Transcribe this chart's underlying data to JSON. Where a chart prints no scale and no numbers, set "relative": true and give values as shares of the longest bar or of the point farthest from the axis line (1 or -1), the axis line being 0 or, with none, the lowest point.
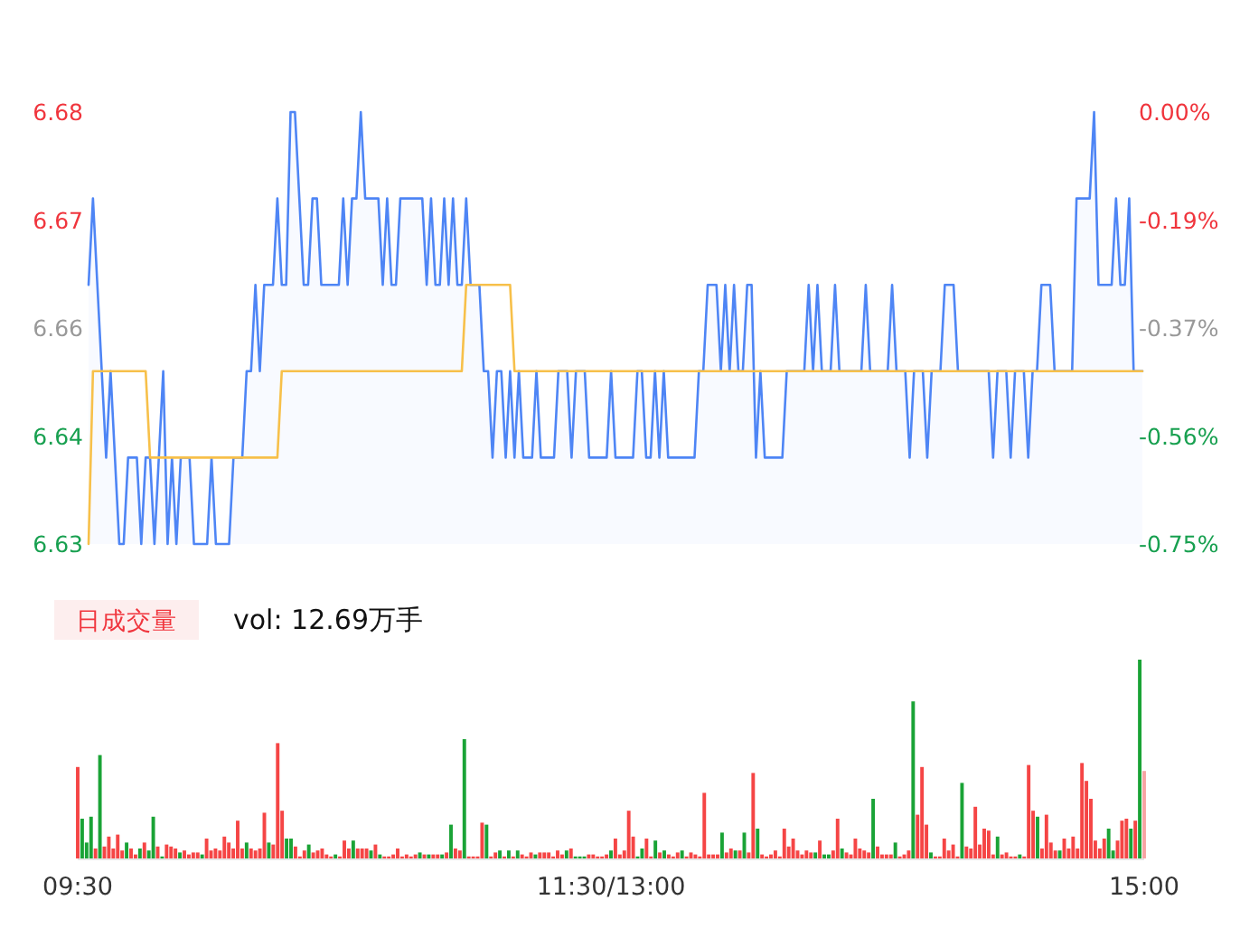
{
  "chart_data": [
    {
      "type": "line",
      "ylim": [
        6.63,
        6.68
      ],
      "categories": [
        null,
        null,
        null,
        null,
        null,
        null,
        null,
        null,
        null,
        null,
        null,
        null,
        null,
        null,
        null,
        null,
        null,
        null,
        null,
        null,
        null,
        null,
        null,
        null,
        null,
        null,
        null,
        null,
        null,
        null,
        null,
        null,
        null,
        null,
        null,
        null,
        null,
        null,
        null,
        null,
        null,
        null,
        null,
        null,
        null,
        null,
        null,
        null,
        null,
        null,
        null,
        null,
        null,
        null,
        null,
        null,
        null,
        null,
        null,
        null,
        null,
        null,
        null,
        null,
        null,
        null,
        null,
        null,
        null,
        null,
        null,
        null,
        null,
        null,
        null,
        null,
        null,
        null,
        null,
        null,
        null,
        null,
        null,
        null,
        null,
        null,
        null,
        null,
        null,
        null,
        null,
        null,
        null,
        null,
        null,
        null,
        null,
        null,
        null,
        null,
        null,
        null,
        null,
        null,
        null,
        null,
        null,
        null,
        null,
        null,
        null,
        null,
        null,
        null,
        null,
        null,
        null,
        null,
        null,
        null,
        null,
        null,
        null,
        null,
        null,
        null,
        null,
        null,
        null,
        null,
        null,
        null,
        null,
        null,
        null,
        null,
        null,
        null,
        null,
        null,
        null,
        null,
        null,
        null,
        null,
        null,
        null,
        null,
        null,
        null,
        null,
        null,
        null,
        null,
        null,
        null,
        null,
        null,
        null,
        null,
        null,
        null,
        null,
        null,
        null,
        null,
        null,
        null,
        null,
        null,
        null,
        null,
        null,
        null,
        null,
        null,
        null,
        null,
        null,
        null,
        null,
        null,
        null,
        null,
        null,
        null,
        null,
        null,
        null,
        null,
        null,
        null,
        null,
        null,
        null,
        null,
        null,
        null,
        null,
        null,
        null,
        null,
        null,
        null,
        null,
        null,
        null,
        null,
        null,
        null,
        null,
        null,
        null,
        null,
        null,
        null,
        null,
        null,
        null,
        null,
        null,
        null,
        null,
        null,
        null,
        null,
        null,
        null,
        null,
        null,
        null,
        null,
        null,
        null,
        null,
        null,
        null,
        null,
        null,
        null,
        null
      ],
      "yticks": [
        6.63,
        {
          "value": 6.6425,
          "label": "6.64"
        },
        {
          "value": 6.655,
          "label": "6.66"
        },
        {
          "value": 6.6675,
          "label": "6.67"
        },
        6.68
      ],
      "y2lim": [
        -0.75,
        0
      ],
      "y2ticks": [
        {
          "value": -0.75,
          "label": "-0.75%"
        },
        {
          "value": -0.5625,
          "label": "-0.56%"
        },
        {
          "value": -0.375,
          "label": "-0.37%"
        },
        {
          "value": -0.1875,
          "label": "-0.19%"
        },
        {
          "value": 0,
          "label": "0.00%"
        }
      ],
      "tick_labels": "y",
      "series": [
        {
          "type": "area",
          "color": "#4e85f5",
          "values": [
            6.66,
            6.67,
            6.66,
            6.65,
            6.64,
            6.65,
            6.64,
            6.63,
            6.63,
            6.64,
            6.64,
            6.64,
            6.63,
            6.64,
            6.64,
            6.63,
            6.64,
            6.65,
            6.63,
            6.64,
            6.63,
            6.64,
            6.64,
            6.64,
            6.63,
            6.63,
            6.63,
            6.63,
            6.64,
            6.63,
            6.63,
            6.63,
            6.63,
            6.64,
            6.64,
            6.64,
            6.65,
            6.65,
            6.66,
            6.65,
            6.66,
            6.66,
            6.66,
            6.67,
            6.66,
            6.66,
            6.68,
            6.68,
            6.67,
            6.66,
            6.66,
            6.67,
            6.67,
            6.66,
            6.66,
            6.66,
            6.66,
            6.66,
            6.67,
            6.66,
            6.67,
            6.67,
            6.68,
            6.67,
            6.67,
            6.67,
            6.67,
            6.66,
            6.67,
            6.66,
            6.66,
            6.67,
            6.67,
            6.67,
            6.67,
            6.67,
            6.67,
            6.66,
            6.67,
            6.66,
            6.66,
            6.67,
            6.66,
            6.67,
            6.66,
            6.66,
            6.67,
            6.66,
            6.66,
            6.66,
            6.65,
            6.65,
            6.64,
            6.65,
            6.65,
            6.64,
            6.65,
            6.64,
            6.65,
            6.64,
            6.64,
            6.64,
            6.65,
            6.64,
            6.64,
            6.64,
            6.64,
            6.65,
            6.65,
            6.65,
            6.64,
            6.65,
            6.65,
            6.65,
            6.64,
            6.64,
            6.64,
            6.64,
            6.64,
            6.65,
            6.64,
            6.64,
            6.64,
            6.64,
            6.64,
            6.65,
            6.65,
            6.64,
            6.64,
            6.65,
            6.64,
            6.65,
            6.64,
            6.64,
            6.64,
            6.64,
            6.64,
            6.64,
            6.64,
            6.65,
            6.65,
            6.66,
            6.66,
            6.66,
            6.65,
            6.66,
            6.65,
            6.66,
            6.65,
            6.65,
            6.66,
            6.66,
            6.64,
            6.65,
            6.64,
            6.64,
            6.64,
            6.64,
            6.64,
            6.65,
            6.65,
            6.65,
            6.65,
            6.65,
            6.66,
            6.65,
            6.66,
            6.65,
            6.65,
            6.65,
            6.66,
            6.65,
            6.65,
            6.65,
            6.65,
            6.65,
            6.65,
            6.66,
            6.65,
            6.65,
            6.65,
            6.65,
            6.65,
            6.66,
            6.65,
            6.65,
            6.65,
            6.64,
            6.65,
            6.65,
            6.65,
            6.64,
            6.65,
            6.65,
            6.65,
            6.66,
            6.66,
            6.66,
            6.65,
            6.65,
            6.65,
            6.65,
            6.65,
            6.65,
            6.65,
            6.65,
            6.64,
            6.65,
            6.65,
            6.65,
            6.64,
            6.65,
            6.65,
            6.65,
            6.64,
            6.65,
            6.65,
            6.66,
            6.66,
            6.66,
            6.65,
            6.65,
            6.65,
            6.65,
            6.65,
            6.67,
            6.67,
            6.67,
            6.67,
            6.68,
            6.66,
            6.66,
            6.66,
            6.66,
            6.67,
            6.66,
            6.66,
            6.67,
            6.65,
            6.65,
            6.65
          ]
        },
        {
          "color": "#f7c04a",
          "values": [
            6.63,
            6.65,
            6.65,
            6.65,
            6.65,
            6.65,
            6.65,
            6.65,
            6.65,
            6.65,
            6.65,
            6.65,
            6.65,
            6.65,
            6.64,
            6.64,
            6.64,
            6.64,
            6.64,
            6.64,
            6.64,
            6.64,
            6.64,
            6.64,
            6.64,
            6.64,
            6.64,
            6.64,
            6.64,
            6.64,
            6.64,
            6.64,
            6.64,
            6.64,
            6.64,
            6.64,
            6.64,
            6.64,
            6.64,
            6.64,
            6.64,
            6.64,
            6.64,
            6.64,
            6.65,
            6.65,
            6.65,
            6.65,
            6.65,
            6.65,
            6.65,
            6.65,
            6.65,
            6.65,
            6.65,
            6.65,
            6.65,
            6.65,
            6.65,
            6.65,
            6.65,
            6.65,
            6.65,
            6.65,
            6.65,
            6.65,
            6.65,
            6.65,
            6.65,
            6.65,
            6.65,
            6.65,
            6.65,
            6.65,
            6.65,
            6.65,
            6.65,
            6.65,
            6.65,
            6.65,
            6.65,
            6.65,
            6.65,
            6.65,
            6.65,
            6.65,
            6.66,
            6.66,
            6.66,
            6.66,
            6.66,
            6.66,
            6.66,
            6.66,
            6.66,
            6.66,
            6.66,
            6.65,
            6.65,
            6.65,
            6.65,
            6.65,
            6.65,
            6.65,
            6.65,
            6.65,
            6.65,
            6.65,
            6.65,
            6.65,
            6.65,
            6.65,
            6.65,
            6.65,
            6.65,
            6.65,
            6.65,
            6.65,
            6.65,
            6.65,
            6.65,
            6.65,
            6.65,
            6.65,
            6.65,
            6.65,
            6.65,
            6.65,
            6.65,
            6.65,
            6.65,
            6.65,
            6.65,
            6.65,
            6.65,
            6.65,
            6.65,
            6.65,
            6.65,
            6.65,
            6.65,
            6.65,
            6.65,
            6.65,
            6.65,
            6.65,
            6.65,
            6.65,
            6.65,
            6.65,
            6.65,
            6.65,
            6.65,
            6.65,
            6.65,
            6.65,
            6.65,
            6.65,
            6.65,
            6.65,
            6.65,
            6.65,
            6.65,
            6.65,
            6.65,
            6.65,
            6.65,
            6.65,
            6.65,
            6.65,
            6.65,
            6.65,
            6.65,
            6.65,
            6.65,
            6.65,
            6.65,
            6.65,
            6.65,
            6.65,
            6.65,
            6.65,
            6.65,
            6.65,
            6.65,
            6.65,
            6.65,
            6.65,
            6.65,
            6.65,
            6.65,
            6.65,
            6.65,
            6.65,
            6.65,
            6.65,
            6.65,
            6.65,
            6.65,
            6.65,
            6.65,
            6.65,
            6.65,
            6.65,
            6.65,
            6.65,
            6.65,
            6.65,
            6.65,
            6.65,
            6.65,
            6.65,
            6.65,
            6.65,
            6.65,
            6.65,
            6.65,
            6.65,
            6.65,
            6.65,
            6.65,
            6.65,
            6.65,
            6.65,
            6.65,
            6.65,
            6.65,
            6.65,
            6.65,
            6.65,
            6.65,
            6.65,
            6.65,
            6.65,
            6.65,
            6.65,
            6.65,
            6.65,
            6.65,
            6.65,
            6.65
          ]
        }
      ]
    },
    {
      "type": "bar",
      "relative": true,
      "title": "日成交量",
      "annotations": [
        "vol: 12.69万手"
      ],
      "categories": [
        "09:30",
        null,
        null,
        null,
        null,
        null,
        null,
        null,
        null,
        null,
        null,
        null,
        null,
        null,
        null,
        null,
        null,
        null,
        null,
        null,
        null,
        null,
        null,
        null,
        null,
        null,
        null,
        null,
        null,
        null,
        null,
        null,
        null,
        null,
        null,
        null,
        null,
        null,
        null,
        null,
        null,
        null,
        null,
        null,
        null,
        null,
        null,
        null,
        null,
        null,
        null,
        null,
        null,
        null,
        null,
        null,
        null,
        null,
        null,
        null,
        null,
        null,
        null,
        null,
        null,
        null,
        null,
        null,
        null,
        null,
        null,
        null,
        null,
        null,
        null,
        null,
        null,
        null,
        null,
        null,
        null,
        null,
        null,
        null,
        null,
        null,
        null,
        null,
        null,
        null,
        null,
        null,
        null,
        null,
        null,
        null,
        null,
        null,
        null,
        null,
        null,
        null,
        null,
        null,
        null,
        null,
        null,
        null,
        null,
        null,
        null,
        null,
        null,
        null,
        null,
        null,
        null,
        null,
        null,
        null,
        "11:30/13:00",
        null,
        null,
        null,
        null,
        null,
        null,
        null,
        null,
        null,
        null,
        null,
        null,
        null,
        null,
        null,
        null,
        null,
        null,
        null,
        null,
        null,
        null,
        null,
        null,
        null,
        null,
        null,
        null,
        null,
        null,
        null,
        null,
        null,
        null,
        null,
        null,
        null,
        null,
        null,
        null,
        null,
        null,
        null,
        null,
        null,
        null,
        null,
        null,
        null,
        null,
        null,
        null,
        null,
        null,
        null,
        null,
        null,
        null,
        null,
        null,
        null,
        null,
        null,
        null,
        null,
        null,
        null,
        null,
        null,
        null,
        null,
        null,
        null,
        null,
        null,
        null,
        null,
        null,
        null,
        null,
        null,
        null,
        null,
        null,
        null,
        null,
        null,
        null,
        null,
        null,
        null,
        null,
        null,
        null,
        null,
        null,
        null,
        null,
        null,
        null,
        null,
        null,
        null,
        null,
        null,
        null,
        null,
        null,
        null,
        null,
        null,
        null,
        null,
        null,
        null,
        null,
        null,
        null,
        null,
        "15:00"
      ],
      "values": [
        0.46,
        0.2,
        0.08,
        0.21,
        0.05,
        0.52,
        0.06,
        0.11,
        0.05,
        0.12,
        0.04,
        0.08,
        0.05,
        0.02,
        0.05,
        0.08,
        0.04,
        0.21,
        0.06,
        0.01,
        0.07,
        0.06,
        0.05,
        0.03,
        0.04,
        0.02,
        0.03,
        0.03,
        0.02,
        0.1,
        0.04,
        0.05,
        0.04,
        0.11,
        0.08,
        0.05,
        0.19,
        0.05,
        0.08,
        0.05,
        0.04,
        0.05,
        0.23,
        0.08,
        0.07,
        0.58,
        0.24,
        0.1,
        0.1,
        0.06,
        0.01,
        0.04,
        0.07,
        0.03,
        0.04,
        0.05,
        0.02,
        0.01,
        0.02,
        0.01,
        0.09,
        0.05,
        0.09,
        0.05,
        0.05,
        0.05,
        0.04,
        0.07,
        0.02,
        0.01,
        0.01,
        0.02,
        0.05,
        0.01,
        0.02,
        0.01,
        0.02,
        0.03,
        0.02,
        0.02,
        0.02,
        0.02,
        0.02,
        0.03,
        0.17,
        0.05,
        0.04,
        0.6,
        0.01,
        0.01,
        0.01,
        0.18,
        0.17,
        0.01,
        0.03,
        0.04,
        0.01,
        0.04,
        0.01,
        0.04,
        0.02,
        0.01,
        0.03,
        0.02,
        0.03,
        0.03,
        0.03,
        0.01,
        0.04,
        0.02,
        0.04,
        0.05,
        0.01,
        0.01,
        0.01,
        0.02,
        0.02,
        0.01,
        0.01,
        0.02,
        0.04,
        0.1,
        0.02,
        0.04,
        0.24,
        0.11,
        0.01,
        0.05,
        0.1,
        0.01,
        0.09,
        0.03,
        0.04,
        0.02,
        0.01,
        0.03,
        0.04,
        0.01,
        0.03,
        0.02,
        0.01,
        0.33,
        0.02,
        0.02,
        0.02,
        0.13,
        0.03,
        0.05,
        0.04,
        0.04,
        0.13,
        0.03,
        0.43,
        0.15,
        0.02,
        0.01,
        0.02,
        0.04,
        0.01,
        0.15,
        0.06,
        0.1,
        0.04,
        0.02,
        0.04,
        0.03,
        0.03,
        0.09,
        0.02,
        0.02,
        0.04,
        0.2,
        0.05,
        0.03,
        0.02,
        0.1,
        0.05,
        0.04,
        0.03,
        0.3,
        0.06,
        0.02,
        0.02,
        0.02,
        0.08,
        0.01,
        0.02,
        0.04,
        0.79,
        0.22,
        0.46,
        0.17,
        0.03,
        0.01,
        0.01,
        0.1,
        0.04,
        0.07,
        0.01,
        0.38,
        0.06,
        0.05,
        0.26,
        0.07,
        0.15,
        0.14,
        0.02,
        0.11,
        0.02,
        0.03,
        0.01,
        0.01,
        0.02,
        0.01,
        0.47,
        0.24,
        0.21,
        0.05,
        0.22,
        0.08,
        0.04,
        0.04,
        0.1,
        0.05,
        0.11,
        0.05,
        0.48,
        0.39,
        0.3,
        0.09,
        0.05,
        0.1,
        0.15,
        0.04,
        0.09,
        0.19,
        0.2,
        0.15,
        0.19,
        1.0,
        0.44
      ],
      "colors": [
        "#f54545",
        "#1aa336",
        "#1aa336",
        "#1aa336",
        "#f54545",
        "#1aa336",
        "#f54545",
        "#f54545",
        "#f54545",
        "#f54545",
        "#f54545",
        "#1aa336",
        "#f54545",
        "#f54545",
        "#1aa336",
        "#f54545",
        "#1aa336",
        "#1aa336",
        "#f54545",
        "#1aa336",
        "#f54545",
        "#f54545",
        "#f54545",
        "#1aa336",
        "#f54545",
        "#f54545",
        "#f54545",
        "#f54545",
        "#1aa336",
        "#f54545",
        "#f54545",
        "#f54545",
        "#f54545",
        "#f54545",
        "#f54545",
        "#f54545",
        "#f54545",
        "#f54545",
        "#1aa336",
        "#f54545",
        "#f54545",
        "#f54545",
        "#f54545",
        "#1aa336",
        "#f54545",
        "#f54545",
        "#f54545",
        "#1aa336",
        "#1aa336",
        "#f54545",
        "#f54545",
        "#f54545",
        "#1aa336",
        "#f54545",
        "#f54545",
        "#f54545",
        "#f54545",
        "#f54545",
        "#1aa336",
        "#f54545",
        "#f54545",
        "#f54545",
        "#1aa336",
        "#f54545",
        "#f54545",
        "#f54545",
        "#1aa336",
        "#f54545",
        "#1aa336",
        "#f54545",
        "#f54545",
        "#f54545",
        "#f54545",
        "#f54545",
        "#f54545",
        "#f54545",
        "#f54545",
        "#1aa336",
        "#f54545",
        "#1aa336",
        "#f54545",
        "#f54545",
        "#1aa336",
        "#f54545",
        "#1aa336",
        "#f54545",
        "#f54545",
        "#1aa336",
        "#f54545",
        "#f54545",
        "#f54545",
        "#f54545",
        "#1aa336",
        "#f54545",
        "#f54545",
        "#1aa336",
        "#f54545",
        "#1aa336",
        "#f54545",
        "#1aa336",
        "#f54545",
        "#f54545",
        "#f54545",
        "#1aa336",
        "#f54545",
        "#f54545",
        "#f54545",
        "#f54545",
        "#f54545",
        "#f54545",
        "#1aa336",
        "#f54545",
        "#1aa336",
        "#1aa336",
        "#1aa336",
        "#f54545",
        "#f54545",
        "#f54545",
        "#f54545",
        "#f54545",
        "#1aa336",
        "#f54545",
        "#f54545",
        "#f54545",
        "#f54545",
        "#f54545",
        "#1aa336",
        "#1aa336",
        "#f54545",
        "#f54545",
        "#1aa336",
        "#f54545",
        "#1aa336",
        "#f54545",
        "#f54545",
        "#f54545",
        "#1aa336",
        "#f54545",
        "#f54545",
        "#f54545",
        "#f54545",
        "#f54545",
        "#f54545",
        "#f54545",
        "#f54545",
        "#1aa336",
        "#f54545",
        "#f54545",
        "#1aa336",
        "#f54545",
        "#1aa336",
        "#f54545",
        "#f54545",
        "#1aa336",
        "#f54545",
        "#f54545",
        "#f54545",
        "#f54545",
        "#f54545",
        "#f54545",
        "#f54545",
        "#f54545",
        "#f54545",
        "#f54545",
        "#f54545",
        "#f54545",
        "#1aa336",
        "#f54545",
        "#1aa336",
        "#1aa336",
        "#f54545",
        "#f54545",
        "#1aa336",
        "#f54545",
        "#f54545",
        "#f54545",
        "#f54545",
        "#f54545",
        "#f54545",
        "#1aa336",
        "#f54545",
        "#f54545",
        "#f54545",
        "#f54545",
        "#1aa336",
        "#f54545",
        "#f54545",
        "#f54545",
        "#1aa336",
        "#f54545",
        "#f54545",
        "#f54545",
        "#1aa336",
        "#f54545",
        "#f54545",
        "#f54545",
        "#f54545",
        "#f54545",
        "#f54545",
        "#1aa336",
        "#f54545",
        "#f54545",
        "#f54545",
        "#f54545",
        "#f54545",
        "#f54545",
        "#f54545",
        "#1aa336",
        "#f54545",
        "#f54545",
        "#f54545",
        "#f54545",
        "#1aa336",
        "#f54545",
        "#f54545",
        "#f54545",
        "#1aa336",
        "#f54545",
        "#f54545",
        "#f54545",
        "#f54545",
        "#1aa336",
        "#f54545",
        "#f54545",
        "#f54545",
        "#f54545",
        "#f54545",
        "#f54545",
        "#f54545",
        "#f54545",
        "#f54545",
        "#f54545",
        "#1aa336",
        "#1aa336",
        "#f54545",
        "#f54545",
        "#f54545",
        "#1aa336",
        "#f54545",
        "#1aa336",
        "#f7a3a3"
      ]
    }
  ]
}
